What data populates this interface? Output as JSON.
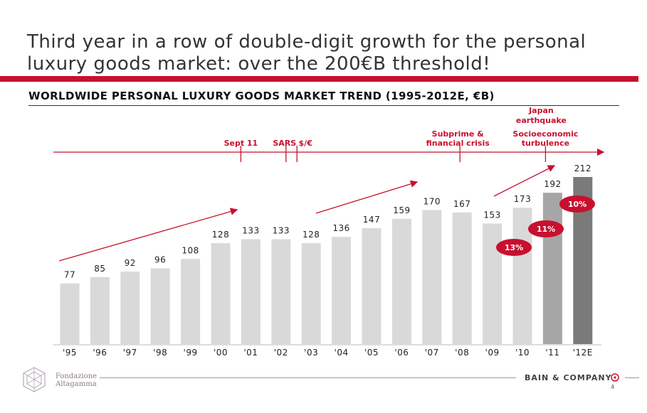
{
  "slide": {
    "title": "Third year in a row of double-digit growth for the personal luxury goods market: over the 200€B threshold!",
    "page_number": "4"
  },
  "logos": {
    "left": "Fondazione Altagamma",
    "right": "BAIN & COMPANY"
  },
  "chart_data": {
    "type": "bar",
    "title": "WORLDWIDE PERSONAL LUXURY GOODS MARKET TREND (1995-2012E, €B)",
    "categories": [
      "'95",
      "'96",
      "'97",
      "'98",
      "'99",
      "'00",
      "'01",
      "'02",
      "'03",
      "'04",
      "'05",
      "'06",
      "'07",
      "'08",
      "'09",
      "'10",
      "'11",
      "'12E"
    ],
    "values": [
      77,
      85,
      92,
      96,
      108,
      128,
      133,
      133,
      128,
      136,
      147,
      159,
      170,
      167,
      153,
      173,
      192,
      212
    ],
    "value_labels": [
      "77",
      "85",
      "92",
      "96",
      "108",
      "128",
      "133",
      "133",
      "128",
      "136",
      "147",
      "159",
      "170",
      "167",
      "153",
      "173",
      "192",
      "212"
    ],
    "ylim": [
      0,
      212
    ],
    "grid": false,
    "bar_colors": {
      "default": "#d9d9d9",
      "2011": "#a6a6a6",
      "2012E": "#7a7a7a"
    },
    "growth_badges": [
      {
        "year": "'10",
        "label": "13%"
      },
      {
        "year": "'11",
        "label": "11%"
      },
      {
        "year": "'12E",
        "label": "10%"
      }
    ],
    "events": [
      {
        "label": "Sept 11",
        "year": "'01"
      },
      {
        "label": "SARS",
        "year": "'02"
      },
      {
        "label": "$/€",
        "year": "'03"
      },
      {
        "label": "Subprime & financial crisis",
        "year": "'08"
      },
      {
        "label": "Japan earthquake",
        "year": "'11"
      },
      {
        "label": "Socioeconomic turbulence",
        "year": "'11"
      }
    ],
    "accent_color": "#c8102e"
  }
}
